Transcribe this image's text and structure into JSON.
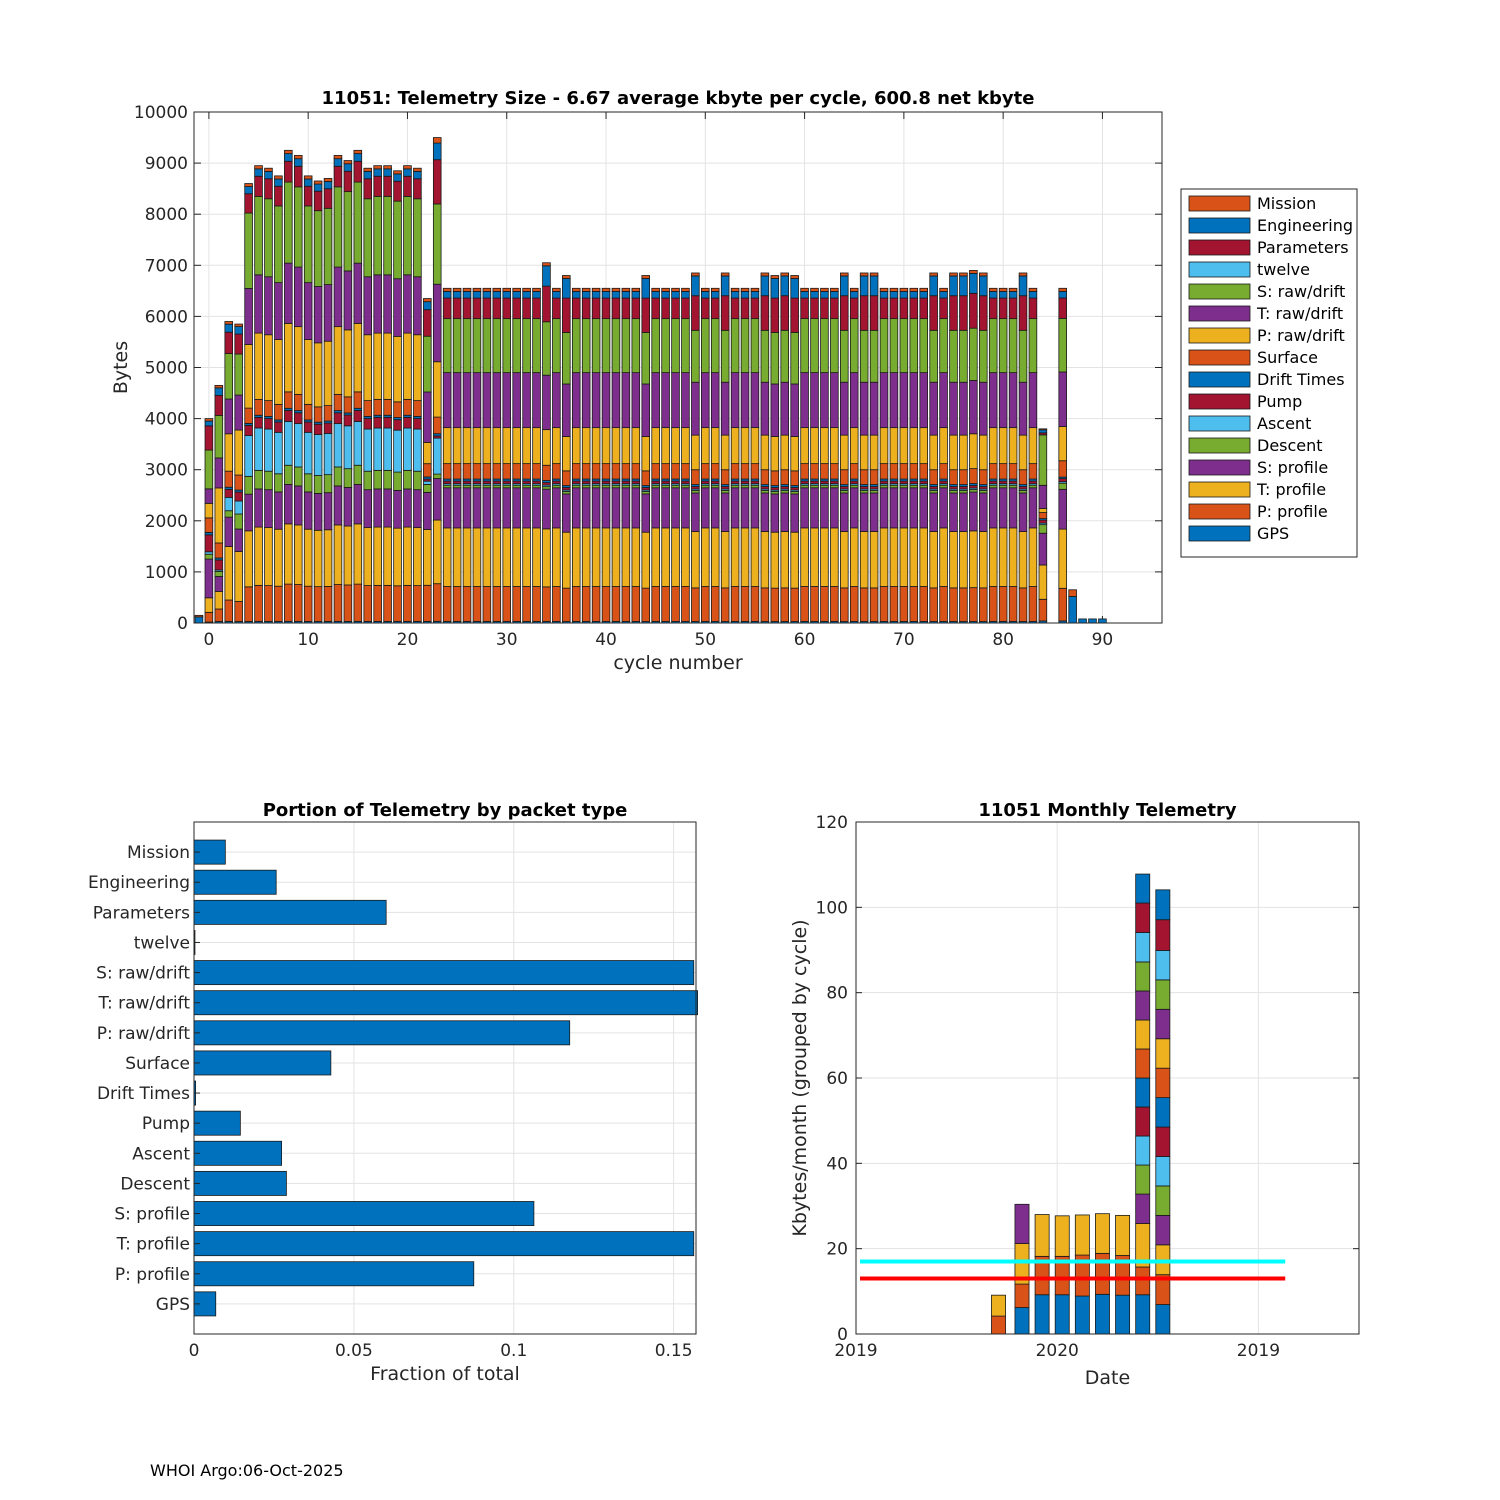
{
  "footer": "WHOI Argo:06-Oct-2025",
  "colors": {
    "GPS": "#0072bd",
    "P: profile": "#d95319",
    "T: profile": "#edb120",
    "S: profile": "#7e2f8e",
    "Descent": "#77ac30",
    "Ascent": "#4dbeee",
    "Pump": "#a2142f",
    "Drift Times": "#0072bd",
    "Surface": "#d95319",
    "P: raw/drift": "#edb120",
    "T: raw/drift": "#7e2f8e",
    "S: raw/drift": "#77ac30",
    "twelve": "#4dbeee",
    "Parameters": "#a2142f",
    "Engineering": "#0072bd",
    "Mission": "#d95319",
    "cyan_line": "#00ffff",
    "red_line": "#ff0000",
    "bar_blue": "#0072bd"
  },
  "chart_data": [
    {
      "type": "bar",
      "stacked": true,
      "title": "11051: Telemetry Size - 6.67 average kbyte per cycle,  600.8 net kbyte",
      "xlabel": "cycle number",
      "ylabel": "Bytes",
      "xlim": [
        -1.5,
        96
      ],
      "ylim": [
        0,
        10000
      ],
      "xticks": [
        0,
        10,
        20,
        30,
        40,
        50,
        60,
        70,
        80,
        90
      ],
      "yticks": [
        0,
        1000,
        2000,
        3000,
        4000,
        5000,
        6000,
        7000,
        8000,
        9000,
        10000
      ],
      "legend_position": "outside-right",
      "legend": [
        "Mission",
        "Engineering",
        "Parameters",
        "twelve",
        "S: raw/drift",
        "T: raw/drift",
        "P: raw/drift",
        "Surface",
        "Drift Times",
        "Pump",
        "Ascent",
        "Descent",
        "S: profile",
        "T: profile",
        "P: profile",
        "GPS"
      ],
      "stack_order": [
        "GPS",
        "P: profile",
        "T: profile",
        "S: profile",
        "Descent",
        "Ascent",
        "Pump",
        "Drift Times",
        "Surface",
        "P: raw/drift",
        "T: raw/drift",
        "S: raw/drift",
        "twelve",
        "Parameters",
        "Engineering",
        "Mission"
      ],
      "profiles": {
        "small": [
          0,
          0,
          0,
          0,
          0,
          0,
          0,
          0,
          0,
          0,
          0,
          0,
          0,
          0,
          80,
          20
        ],
        "c0": [
          20,
          200,
          300,
          800,
          100,
          50,
          350,
          50,
          300,
          300,
          300,
          800,
          0,
          500,
          100,
          50
        ],
        "c1": [
          30,
          250,
          350,
          300,
          100,
          30,
          200,
          40,
          300,
          1100,
          600,
          850,
          0,
          400,
          150,
          50
        ],
        "c2": [
          30,
          400,
          1000,
          550,
          120,
          250,
          150,
          40,
          300,
          700,
          650,
          850,
          0,
          400,
          150,
          50
        ],
        "c3": [
          30,
          400,
          1000,
          450,
          300,
          260,
          180,
          40,
          300,
          900,
          700,
          820,
          0,
          400,
          150,
          50
        ],
        "c4": [
          30,
          680,
          1100,
          720,
          350,
          800,
          200,
          40,
          300,
          1250,
          1100,
          1480,
          0,
          380,
          140,
          60
        ],
        "c22": [
          30,
          680,
          1050,
          700,
          150,
          60,
          40,
          40,
          250,
          400,
          950,
          1050,
          0,
          500,
          150,
          60
        ],
        "c23": [
          30,
          680,
          1150,
          750,
          80,
          650,
          40,
          40,
          300,
          1000,
          1400,
          1450,
          0,
          800,
          300,
          100
        ],
        "normal": [
          30,
          680,
          1140,
          780,
          50,
          30,
          50,
          40,
          300,
          700,
          1070,
          1050,
          0,
          400,
          130,
          60
        ],
        "c34": [
          30,
          680,
          1140,
          780,
          50,
          30,
          50,
          40,
          300,
          700,
          1070,
          1050,
          0,
          700,
          400,
          60
        ],
        "c83": [
          40,
          430,
          680,
          630,
          170,
          30,
          60,
          30,
          120,
          80,
          460,
          1000,
          0,
          40,
          60,
          20
        ],
        "c85": [
          40,
          640,
          1160,
          780,
          120,
          30,
          60,
          30,
          320,
          670,
          1070,
          1050,
          0,
          400,
          130,
          60
        ],
        "tiny": [
          80,
          0,
          0,
          0,
          0,
          0,
          0,
          0,
          0,
          0,
          0,
          0,
          0,
          0,
          0,
          0
        ]
      },
      "cycles": [
        {
          "x": -1,
          "total": 150,
          "profile": "small"
        },
        {
          "x": 0,
          "total": 4000,
          "profile": "c0"
        },
        {
          "x": 1,
          "total": 4650,
          "profile": "c1"
        },
        {
          "x": 2,
          "total": 5900,
          "profile": "c2"
        },
        {
          "x": 3,
          "total": 5850,
          "profile": "c3"
        },
        {
          "x": 4,
          "total": 8600,
          "profile": "c4"
        },
        {
          "x": 5,
          "total": 8950,
          "profile": "c4"
        },
        {
          "x": 6,
          "total": 8900,
          "profile": "c4"
        },
        {
          "x": 7,
          "total": 8750,
          "profile": "c4"
        },
        {
          "x": 8,
          "total": 9250,
          "profile": "c4"
        },
        {
          "x": 9,
          "total": 9150,
          "profile": "c4"
        },
        {
          "x": 10,
          "total": 8750,
          "profile": "c4"
        },
        {
          "x": 11,
          "total": 8650,
          "profile": "c4"
        },
        {
          "x": 12,
          "total": 8700,
          "profile": "c4"
        },
        {
          "x": 13,
          "total": 9150,
          "profile": "c4"
        },
        {
          "x": 14,
          "total": 9050,
          "profile": "c4"
        },
        {
          "x": 15,
          "total": 9250,
          "profile": "c4"
        },
        {
          "x": 16,
          "total": 8900,
          "profile": "c4"
        },
        {
          "x": 17,
          "total": 8950,
          "profile": "c4"
        },
        {
          "x": 18,
          "total": 8950,
          "profile": "c4"
        },
        {
          "x": 19,
          "total": 8850,
          "profile": "c4"
        },
        {
          "x": 20,
          "total": 8950,
          "profile": "c4"
        },
        {
          "x": 21,
          "total": 8900,
          "profile": "c4"
        },
        {
          "x": 22,
          "total": 6350,
          "profile": "c22"
        },
        {
          "x": 23,
          "total": 9500,
          "profile": "c23"
        },
        {
          "x": 24,
          "total": 6550,
          "profile": "normal"
        },
        {
          "x": 25,
          "total": 6550,
          "profile": "normal"
        },
        {
          "x": 26,
          "total": 6550,
          "profile": "normal"
        },
        {
          "x": 27,
          "total": 6550,
          "profile": "normal"
        },
        {
          "x": 28,
          "total": 6550,
          "profile": "normal"
        },
        {
          "x": 29,
          "total": 6550,
          "profile": "normal"
        },
        {
          "x": 30,
          "total": 6550,
          "profile": "normal"
        },
        {
          "x": 31,
          "total": 6550,
          "profile": "normal"
        },
        {
          "x": 32,
          "total": 6550,
          "profile": "normal"
        },
        {
          "x": 33,
          "total": 6550,
          "profile": "normal"
        },
        {
          "x": 34,
          "total": 7050,
          "profile": "c34"
        },
        {
          "x": 35,
          "total": 6550,
          "profile": "normal"
        },
        {
          "x": 36,
          "total": 6800,
          "profile": "c34"
        },
        {
          "x": 37,
          "total": 6550,
          "profile": "normal"
        },
        {
          "x": 38,
          "total": 6550,
          "profile": "normal"
        },
        {
          "x": 39,
          "total": 6550,
          "profile": "normal"
        },
        {
          "x": 40,
          "total": 6550,
          "profile": "normal"
        },
        {
          "x": 41,
          "total": 6550,
          "profile": "normal"
        },
        {
          "x": 42,
          "total": 6550,
          "profile": "normal"
        },
        {
          "x": 43,
          "total": 6550,
          "profile": "normal"
        },
        {
          "x": 44,
          "total": 6800,
          "profile": "c34"
        },
        {
          "x": 45,
          "total": 6550,
          "profile": "normal"
        },
        {
          "x": 46,
          "total": 6550,
          "profile": "normal"
        },
        {
          "x": 47,
          "total": 6550,
          "profile": "normal"
        },
        {
          "x": 48,
          "total": 6550,
          "profile": "normal"
        },
        {
          "x": 49,
          "total": 6850,
          "profile": "c34"
        },
        {
          "x": 50,
          "total": 6550,
          "profile": "normal"
        },
        {
          "x": 51,
          "total": 6550,
          "profile": "normal"
        },
        {
          "x": 52,
          "total": 6850,
          "profile": "c34"
        },
        {
          "x": 53,
          "total": 6550,
          "profile": "normal"
        },
        {
          "x": 54,
          "total": 6550,
          "profile": "normal"
        },
        {
          "x": 55,
          "total": 6550,
          "profile": "normal"
        },
        {
          "x": 56,
          "total": 6850,
          "profile": "c34"
        },
        {
          "x": 57,
          "total": 6800,
          "profile": "c34"
        },
        {
          "x": 58,
          "total": 6850,
          "profile": "c34"
        },
        {
          "x": 59,
          "total": 6800,
          "profile": "c34"
        },
        {
          "x": 60,
          "total": 6550,
          "profile": "normal"
        },
        {
          "x": 61,
          "total": 6550,
          "profile": "normal"
        },
        {
          "x": 62,
          "total": 6550,
          "profile": "normal"
        },
        {
          "x": 63,
          "total": 6550,
          "profile": "normal"
        },
        {
          "x": 64,
          "total": 6850,
          "profile": "c34"
        },
        {
          "x": 65,
          "total": 6550,
          "profile": "normal"
        },
        {
          "x": 66,
          "total": 6850,
          "profile": "c34"
        },
        {
          "x": 67,
          "total": 6850,
          "profile": "c34"
        },
        {
          "x": 68,
          "total": 6550,
          "profile": "normal"
        },
        {
          "x": 69,
          "total": 6550,
          "profile": "normal"
        },
        {
          "x": 70,
          "total": 6550,
          "profile": "normal"
        },
        {
          "x": 71,
          "total": 6550,
          "profile": "normal"
        },
        {
          "x": 72,
          "total": 6550,
          "profile": "normal"
        },
        {
          "x": 73,
          "total": 6850,
          "profile": "c34"
        },
        {
          "x": 74,
          "total": 6550,
          "profile": "normal"
        },
        {
          "x": 75,
          "total": 6850,
          "profile": "c34"
        },
        {
          "x": 76,
          "total": 6850,
          "profile": "c34"
        },
        {
          "x": 77,
          "total": 6900,
          "profile": "c34"
        },
        {
          "x": 78,
          "total": 6850,
          "profile": "c34"
        },
        {
          "x": 79,
          "total": 6550,
          "profile": "normal"
        },
        {
          "x": 80,
          "total": 6550,
          "profile": "normal"
        },
        {
          "x": 81,
          "total": 6550,
          "profile": "normal"
        },
        {
          "x": 82,
          "total": 6850,
          "profile": "c34"
        },
        {
          "x": 83,
          "total": 6550,
          "profile": "normal"
        },
        {
          "x": 84,
          "total": 3800,
          "profile": "c83"
        },
        {
          "x": 86,
          "total": 6550,
          "profile": "c85"
        },
        {
          "x": 87,
          "total": 650,
          "profile": "small"
        },
        {
          "x": 88,
          "total": 80,
          "profile": "tiny"
        },
        {
          "x": 89,
          "total": 80,
          "profile": "tiny"
        },
        {
          "x": 90,
          "total": 80,
          "profile": "tiny"
        }
      ]
    },
    {
      "type": "bar",
      "orientation": "horizontal",
      "title": "Portion of Telemetry by packet type",
      "xlabel": "Fraction of total",
      "ylabel": "",
      "xlim": [
        0,
        0.157
      ],
      "xticks": [
        0,
        0.05,
        0.1,
        0.15
      ],
      "xtick_labels": [
        "0",
        "0.05",
        "0.1",
        "0.15"
      ],
      "categories": [
        "Mission",
        "Engineering",
        "Parameters",
        "twelve",
        "S: raw/drift",
        "T: raw/drift",
        "P: raw/drift",
        "Surface",
        "Drift Times",
        "Pump",
        "Ascent",
        "Descent",
        "S: profile",
        "T: profile",
        "P: profile",
        "GPS"
      ],
      "values": [
        0.0098,
        0.0257,
        0.0601,
        0.0003,
        0.1563,
        0.1575,
        0.1175,
        0.0428,
        0.0005,
        0.0145,
        0.0274,
        0.0289,
        0.1063,
        0.1563,
        0.0875,
        0.0068
      ]
    },
    {
      "type": "bar",
      "stacked": true,
      "title": "11051 Monthly Telemetry",
      "xlabel": "Date",
      "ylabel": "Kbytes/month (grouped by cycle)",
      "ylim": [
        0,
        120
      ],
      "yticks": [
        0,
        20,
        40,
        60,
        80,
        100,
        120
      ],
      "xlim": [
        0,
        15
      ],
      "xticks": [
        0,
        6,
        12
      ],
      "xtick_labels": [
        "2019",
        "2020",
        "2019"
      ],
      "stack_order": [
        "GPS",
        "P: profile",
        "T: profile",
        "S: profile",
        "Descent",
        "Ascent",
        "Pump",
        "Drift Times",
        "Surface",
        "P: raw/drift",
        "T: raw/drift",
        "S: raw/drift",
        "twelve",
        "Parameters",
        "Engineering",
        "Mission"
      ],
      "months": [
        {
          "x": 4.25,
          "segments": [
            0,
            4.2,
            4.9,
            0,
            0,
            0,
            0,
            0,
            0,
            0,
            0,
            0,
            0,
            0,
            0,
            0
          ]
        },
        {
          "x": 4.95,
          "segments": [
            6.2,
            5.5,
            9.5,
            9.2,
            0,
            0,
            0,
            0,
            0,
            0,
            0,
            0,
            0,
            0,
            0,
            0
          ]
        },
        {
          "x": 5.55,
          "segments": [
            9.2,
            9.0,
            9.8,
            0,
            0,
            0,
            0,
            0,
            0,
            0,
            0,
            0,
            0,
            0,
            0,
            0
          ]
        },
        {
          "x": 6.15,
          "segments": [
            9.2,
            9.0,
            9.5,
            0,
            0,
            0,
            0,
            0,
            0,
            0,
            0,
            0,
            0,
            0,
            0,
            0
          ]
        },
        {
          "x": 6.75,
          "segments": [
            8.9,
            9.6,
            9.4,
            0,
            0,
            0,
            0,
            0,
            0,
            0,
            0,
            0,
            0,
            0,
            0,
            0
          ]
        },
        {
          "x": 7.35,
          "segments": [
            9.3,
            9.6,
            9.3,
            0,
            0,
            0,
            0,
            0,
            0,
            0,
            0,
            0,
            0,
            0,
            0,
            0
          ]
        },
        {
          "x": 7.95,
          "segments": [
            9.1,
            9.3,
            9.4,
            0,
            0,
            0,
            0,
            0,
            0,
            0,
            0,
            0,
            0,
            0,
            0,
            0
          ]
        },
        {
          "x": 8.55,
          "segments": [
            9.2,
            6.5,
            10.2,
            6.9,
            6.8,
            6.8,
            6.8,
            6.8,
            6.8,
            6.8,
            6.8,
            6.8,
            6.9,
            6.9,
            6.8,
            0
          ]
        },
        {
          "x": 9.15,
          "segments": [
            6.9,
            7.0,
            7.0,
            6.9,
            6.9,
            6.9,
            6.9,
            6.9,
            6.9,
            6.9,
            6.9,
            6.9,
            6.9,
            7.2,
            7.0,
            0
          ]
        }
      ],
      "lines": [
        {
          "name": "cyan",
          "y": 17.0,
          "x": [
            0,
            12.8
          ]
        },
        {
          "name": "red",
          "y": 13.0,
          "x": [
            0,
            12.8
          ]
        }
      ]
    }
  ]
}
